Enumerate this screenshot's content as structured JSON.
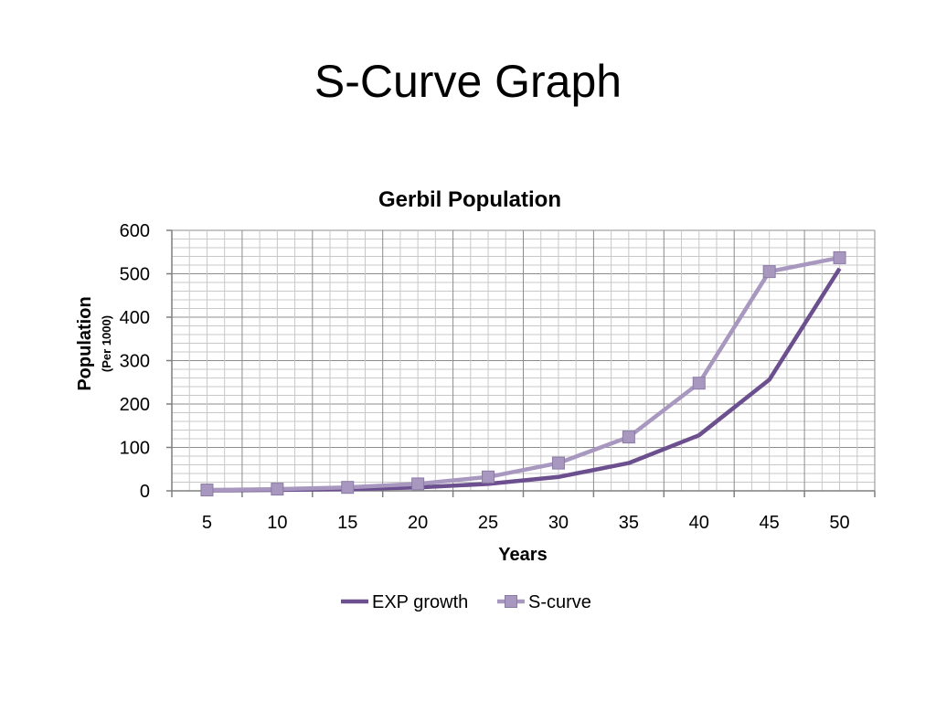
{
  "slide": {
    "title": "S-Curve Graph"
  },
  "chart_data": {
    "type": "line",
    "title": "Gerbil Population",
    "xlabel": "Years",
    "ylabel": "Population",
    "ylabel_sub": "(Per 1000)",
    "x": [
      5,
      10,
      15,
      20,
      25,
      30,
      35,
      40,
      45,
      50
    ],
    "ylim": [
      0,
      600
    ],
    "yticks": [
      0,
      100,
      200,
      300,
      400,
      500,
      600
    ],
    "grid": true,
    "legend": "bottom",
    "series": [
      {
        "name": "EXP growth",
        "color": "#6b4f8e",
        "marker": "none",
        "values": [
          1,
          2,
          4,
          8,
          16,
          32,
          64,
          128,
          256,
          512
        ]
      },
      {
        "name": "S-curve",
        "color": "#a898c0",
        "marker": "square",
        "values": [
          2,
          4,
          8,
          16,
          32,
          64,
          124,
          248,
          505,
          537
        ]
      }
    ]
  }
}
